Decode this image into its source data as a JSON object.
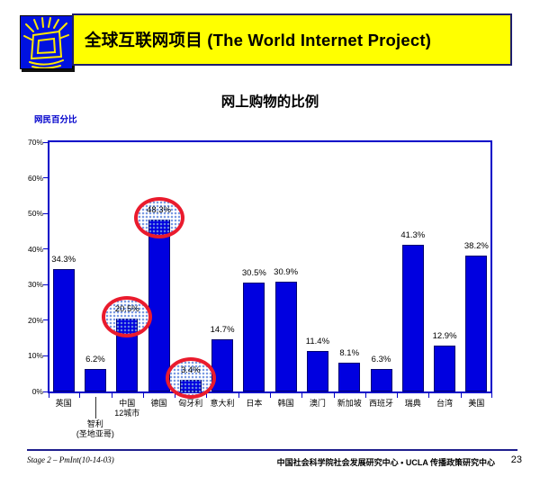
{
  "header": {
    "title": "全球互联网项目 (The World Internet Project)",
    "logo": "shining-monitor-icon"
  },
  "chart_data": {
    "type": "bar",
    "title": "网上购物的比例",
    "ylabel": "网民百分比",
    "xlabel": "",
    "ylim": [
      0,
      70
    ],
    "yticks": [
      "0%",
      "10%",
      "20%",
      "30%",
      "40%",
      "50%",
      "60%",
      "70%"
    ],
    "grid": false,
    "legend": null,
    "categories": [
      "英国",
      "智利 (圣地亚哥)",
      "中国 12城市",
      "德国",
      "匈牙利",
      "意大利",
      "日本",
      "韩国",
      "澳门",
      "新加坡",
      "西班牙",
      "瑞典",
      "台湾",
      "美国"
    ],
    "category_lines": [
      [
        "英国"
      ],
      [
        "智利",
        "(圣地亚哥)"
      ],
      [
        "中国",
        "12城市"
      ],
      [
        "德国"
      ],
      [
        "匈牙利"
      ],
      [
        "意大利"
      ],
      [
        "日本"
      ],
      [
        "韩国"
      ],
      [
        "澳门"
      ],
      [
        "新加坡"
      ],
      [
        "西班牙"
      ],
      [
        "瑞典"
      ],
      [
        "台湾"
      ],
      [
        "美国"
      ]
    ],
    "values": [
      34.3,
      6.2,
      20.5,
      48.3,
      3.4,
      14.7,
      30.5,
      30.9,
      11.4,
      8.1,
      6.3,
      41.3,
      12.9,
      38.2
    ],
    "value_labels": [
      "34.3%",
      "6.2%",
      "20.5%",
      "48.3%",
      "3.4%",
      "14.7%",
      "30.5%",
      "30.9%",
      "11.4%",
      "8.1%",
      "6.3%",
      "41.3%",
      "12.9%",
      "38.2%"
    ],
    "highlighted_indices": [
      2,
      3,
      4
    ],
    "offset_label_indices": [
      1
    ],
    "bar_color": "#0000e0",
    "axis_color": "#0000c8",
    "highlight_circle_color": "#ea1b2d",
    "ylabel_color": "#0000cc"
  },
  "footer": {
    "left": "Stage 2 – PmInt(10-14-03)",
    "center": "中国社会科学院社会发展研究中心 • UCLA 传播政策研究中心",
    "page": "23"
  }
}
